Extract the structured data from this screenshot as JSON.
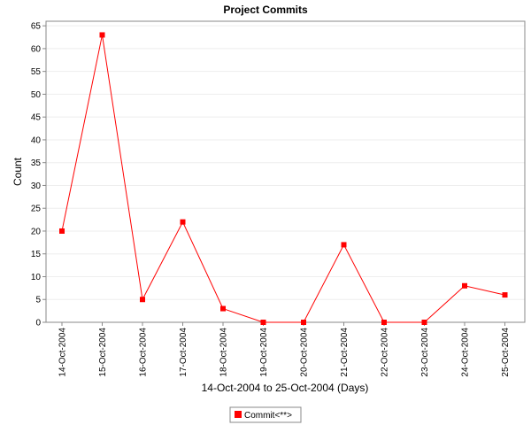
{
  "chart_data": {
    "type": "line",
    "title": "Project Commits",
    "xlabel": "14-Oct-2004 to 25-Oct-2004 (Days)",
    "ylabel": "Count",
    "ylim": [
      0,
      66
    ],
    "yticks": [
      0,
      5,
      10,
      15,
      20,
      25,
      30,
      35,
      40,
      45,
      50,
      55,
      60,
      65
    ],
    "categories": [
      "14-Oct-2004",
      "15-Oct-2004",
      "16-Oct-2004",
      "17-Oct-2004",
      "18-Oct-2004",
      "19-Oct-2004",
      "20-Oct-2004",
      "21-Oct-2004",
      "22-Oct-2004",
      "23-Oct-2004",
      "24-Oct-2004",
      "25-Oct-2004"
    ],
    "series": [
      {
        "name": "Commit<**>",
        "color": "#ff0000",
        "values": [
          20,
          63,
          5,
          22,
          3,
          0,
          0,
          17,
          0,
          0,
          8,
          6
        ]
      }
    ],
    "grid": true,
    "legend": "bottom-center"
  }
}
